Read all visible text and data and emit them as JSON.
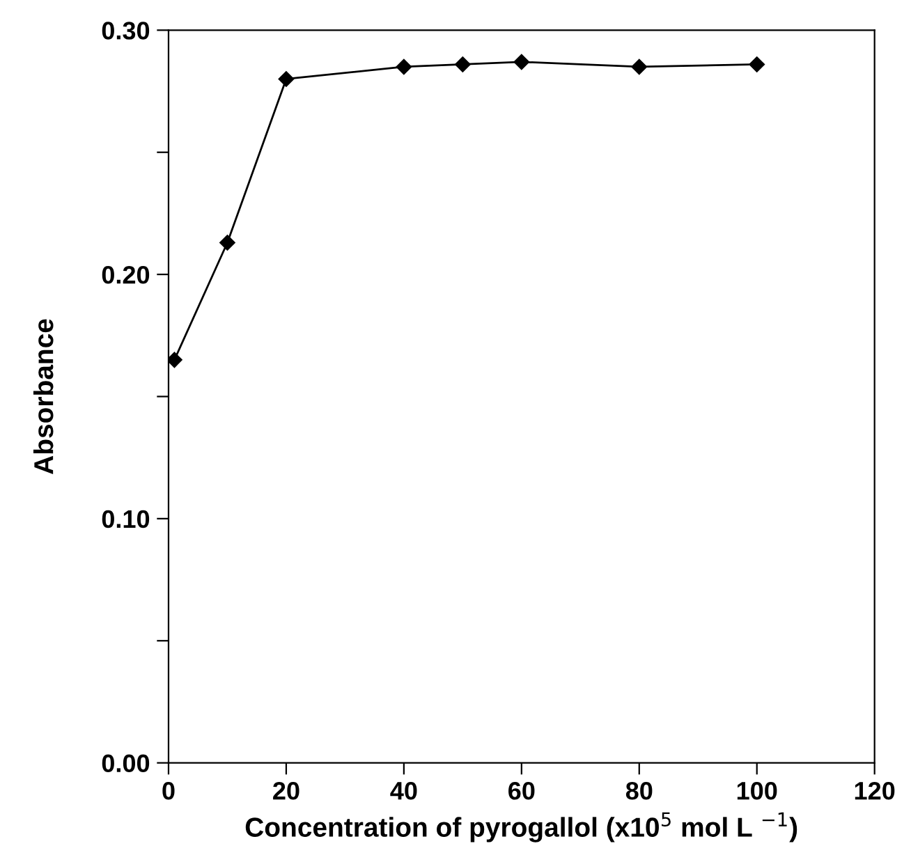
{
  "chart_data": {
    "type": "line",
    "xlabel": "Concentration of pyrogallol (x10$^{5}$ mol L $^{−1}$)",
    "ylabel": "Absorbance",
    "x": [
      1,
      10,
      20,
      40,
      50,
      60,
      80,
      100
    ],
    "series": [
      {
        "color": "#000000",
        "values": [
          0.165,
          0.213,
          0.28,
          0.285,
          0.286,
          0.287,
          0.285,
          0.286
        ]
      }
    ],
    "xlim": [
      0,
      120
    ],
    "xticks": [
      0,
      20,
      40,
      60,
      80,
      100,
      120
    ],
    "ylim": [
      0,
      0.3
    ],
    "yticks": [
      {
        "value": 0,
        "label": "0.00"
      },
      {
        "value": 0.05,
        "label": null
      },
      {
        "value": 0.1,
        "label": "0.10"
      },
      {
        "value": 0.15,
        "label": null
      },
      {
        "value": 0.2,
        "label": "0.20"
      },
      {
        "value": 0.25,
        "label": null
      },
      {
        "value": 0.3,
        "label": "0.30"
      }
    ],
    "marker": "diamond",
    "line_style": "solid",
    "grid": false,
    "legend": false
  }
}
